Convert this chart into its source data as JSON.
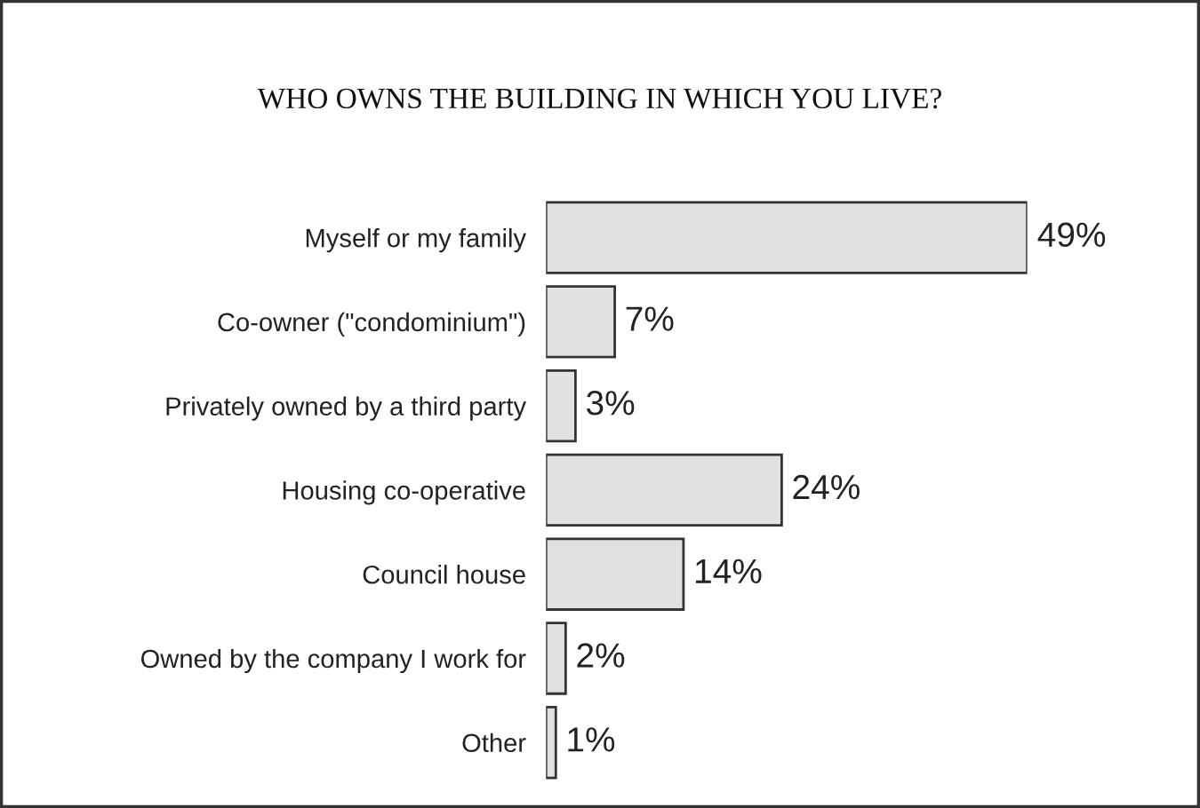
{
  "chart_data": {
    "type": "bar",
    "orientation": "horizontal",
    "title": "WHO OWNS THE BUILDING IN WHICH YOU LIVE?",
    "categories": [
      "Myself or my family",
      "Co-owner (\"condominium\")",
      "Privately owned by a third party",
      "Housing co-operative",
      "Council house",
      "Owned by the company I work for",
      "Other"
    ],
    "values": [
      49,
      7,
      3,
      24,
      14,
      2,
      1
    ],
    "value_labels": [
      "49%",
      "7%",
      "3%",
      "24%",
      "14%",
      "2%",
      "1%"
    ],
    "color": "#e0e1e3",
    "tick_labels": "y",
    "grid": false,
    "legend": false
  }
}
